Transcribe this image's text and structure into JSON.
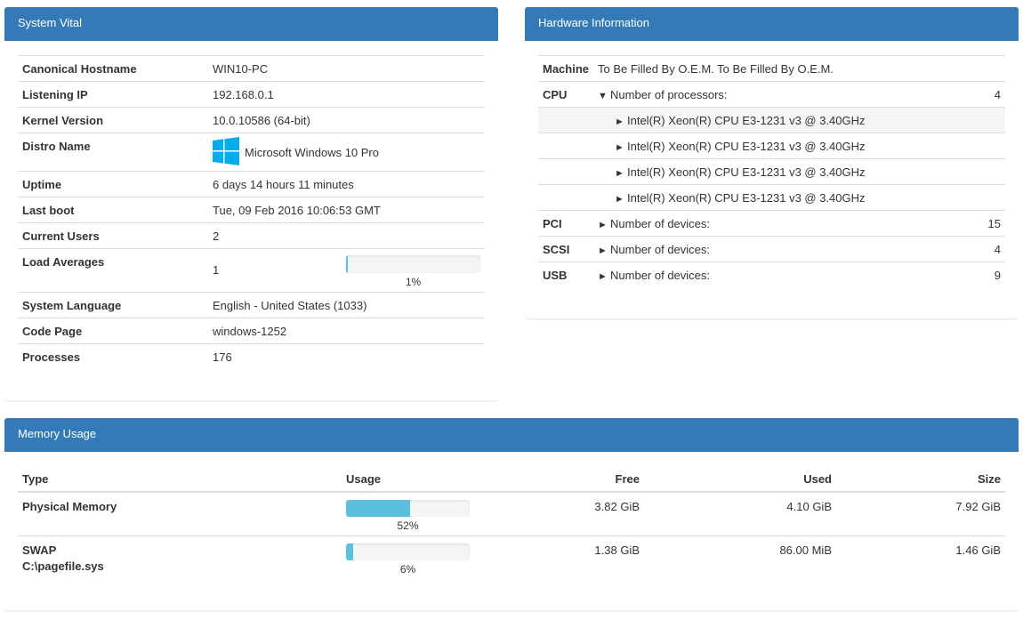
{
  "system_vital": {
    "title": "System Vital",
    "rows": {
      "hostname": {
        "label": "Canonical Hostname",
        "value": "WIN10-PC"
      },
      "ip": {
        "label": "Listening IP",
        "value": "192.168.0.1"
      },
      "kernel": {
        "label": "Kernel Version",
        "value": "10.0.10586 (64-bit)"
      },
      "distro": {
        "label": "Distro Name",
        "value": "Microsoft Windows 10 Pro",
        "icon": "windows-logo-icon"
      },
      "uptime": {
        "label": "Uptime",
        "value": "6 days 14 hours 11 minutes"
      },
      "last_boot": {
        "label": "Last boot",
        "value": "Tue, 09 Feb 2016 10:06:53 GMT"
      },
      "users": {
        "label": "Current Users",
        "value": "2"
      },
      "load": {
        "label": "Load Averages",
        "value": "1",
        "percent_label": "1%",
        "percent": 1
      },
      "language": {
        "label": "System Language",
        "value": "English - United States (1033)"
      },
      "codepage": {
        "label": "Code Page",
        "value": "windows-1252"
      },
      "processes": {
        "label": "Processes",
        "value": "176"
      }
    }
  },
  "hardware": {
    "title": "Hardware Information",
    "machine": {
      "label": "Machine",
      "value": "To Be Filled By O.E.M. To Be Filled By O.E.M."
    },
    "cpu": {
      "label": "CPU",
      "expanded_icon": "▼",
      "text": "Number of processors:",
      "count": "4",
      "processors": [
        "Intel(R) Xeon(R) CPU E3-1231 v3 @ 3.40GHz",
        "Intel(R) Xeon(R) CPU E3-1231 v3 @ 3.40GHz",
        "Intel(R) Xeon(R) CPU E3-1231 v3 @ 3.40GHz",
        "Intel(R) Xeon(R) CPU E3-1231 v3 @ 3.40GHz"
      ]
    },
    "collapsed_icon": "►",
    "pci": {
      "label": "PCI",
      "text": "Number of devices:",
      "count": "15"
    },
    "scsi": {
      "label": "SCSI",
      "text": "Number of devices:",
      "count": "4"
    },
    "usb": {
      "label": "USB",
      "text": "Number of devices:",
      "count": "9"
    }
  },
  "memory": {
    "title": "Memory Usage",
    "headers": {
      "type": "Type",
      "usage": "Usage",
      "free": "Free",
      "used": "Used",
      "size": "Size"
    },
    "physical": {
      "type": "Physical Memory",
      "percent_label": "52%",
      "percent": 52,
      "free": "3.82 GiB",
      "used": "4.10 GiB",
      "size": "7.92 GiB"
    },
    "swap": {
      "type": "SWAP",
      "file": "C:\\pagefile.sys",
      "percent_label": "6%",
      "percent": 6,
      "free": "1.38 GiB",
      "used": "86.00 MiB",
      "size": "1.46 GiB"
    }
  },
  "colors": {
    "header_bg": "#337ab7",
    "bar_fill": "#5bc0de",
    "windows_logo": "#00adef"
  }
}
